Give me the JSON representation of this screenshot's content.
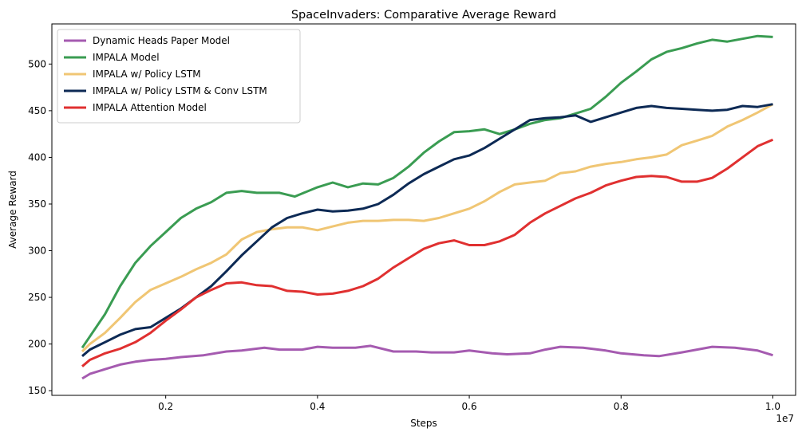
{
  "chart_data": {
    "type": "line",
    "title": "SpaceInvaders: Comparative Average Reward",
    "xlabel": "Steps",
    "ylabel": "Average Reward",
    "x_offset_label": "1e7",
    "xlim": [
      0.05,
      1.03
    ],
    "ylim": [
      145,
      543
    ],
    "x_ticks": [
      0.2,
      0.4,
      0.6,
      0.8,
      1.0
    ],
    "x_tick_labels": [
      "0.2",
      "0.4",
      "0.6",
      "0.8",
      "1.0"
    ],
    "y_ticks": [
      150,
      200,
      250,
      300,
      350,
      400,
      450,
      500
    ],
    "y_tick_labels": [
      "150",
      "200",
      "250",
      "300",
      "350",
      "400",
      "450",
      "500"
    ],
    "grid": false,
    "legend_position": "top-left",
    "series": [
      {
        "name": "Dynamic Heads Paper Model",
        "color": "#a55bb0",
        "x": [
          0.09,
          0.1,
          0.12,
          0.14,
          0.16,
          0.18,
          0.2,
          0.22,
          0.25,
          0.28,
          0.3,
          0.33,
          0.35,
          0.38,
          0.4,
          0.42,
          0.45,
          0.47,
          0.5,
          0.53,
          0.55,
          0.58,
          0.6,
          0.63,
          0.65,
          0.68,
          0.7,
          0.72,
          0.75,
          0.78,
          0.8,
          0.83,
          0.85,
          0.88,
          0.9,
          0.92,
          0.95,
          0.98,
          1.0
        ],
        "y": [
          163,
          168,
          173,
          178,
          181,
          183,
          184,
          186,
          188,
          192,
          193,
          196,
          194,
          194,
          197,
          196,
          196,
          198,
          192,
          192,
          191,
          191,
          193,
          190,
          189,
          190,
          194,
          197,
          196,
          193,
          190,
          188,
          187,
          191,
          194,
          197,
          196,
          193,
          188
        ]
      },
      {
        "name": "IMPALA Model",
        "color": "#3a9c52",
        "x": [
          0.09,
          0.1,
          0.12,
          0.14,
          0.16,
          0.18,
          0.2,
          0.22,
          0.24,
          0.26,
          0.28,
          0.3,
          0.32,
          0.35,
          0.37,
          0.4,
          0.42,
          0.44,
          0.46,
          0.48,
          0.5,
          0.52,
          0.54,
          0.56,
          0.58,
          0.6,
          0.62,
          0.64,
          0.66,
          0.68,
          0.7,
          0.72,
          0.74,
          0.76,
          0.78,
          0.8,
          0.82,
          0.84,
          0.86,
          0.88,
          0.9,
          0.92,
          0.94,
          0.96,
          0.98,
          1.0
        ],
        "y": [
          196,
          208,
          232,
          262,
          287,
          305,
          320,
          335,
          345,
          352,
          362,
          364,
          362,
          362,
          358,
          368,
          373,
          368,
          372,
          371,
          378,
          390,
          405,
          417,
          427,
          428,
          430,
          425,
          430,
          436,
          440,
          442,
          447,
          452,
          465,
          480,
          492,
          505,
          513,
          517,
          522,
          526,
          524,
          527,
          530,
          529
        ]
      },
      {
        "name": "IMPALA w/ Policy LSTM",
        "color": "#f0c674",
        "x": [
          0.09,
          0.1,
          0.12,
          0.14,
          0.16,
          0.18,
          0.2,
          0.22,
          0.24,
          0.26,
          0.28,
          0.3,
          0.32,
          0.34,
          0.36,
          0.38,
          0.4,
          0.42,
          0.44,
          0.46,
          0.48,
          0.5,
          0.52,
          0.54,
          0.56,
          0.58,
          0.6,
          0.62,
          0.64,
          0.66,
          0.68,
          0.7,
          0.72,
          0.74,
          0.76,
          0.78,
          0.8,
          0.82,
          0.84,
          0.86,
          0.88,
          0.9,
          0.92,
          0.94,
          0.96,
          0.98,
          1.0
        ],
        "y": [
          192,
          200,
          212,
          228,
          245,
          258,
          265,
          272,
          280,
          287,
          296,
          312,
          320,
          323,
          325,
          325,
          322,
          326,
          330,
          332,
          332,
          333,
          333,
          332,
          335,
          340,
          345,
          353,
          363,
          371,
          373,
          375,
          383,
          385,
          390,
          393,
          395,
          398,
          400,
          403,
          413,
          418,
          423,
          433,
          440,
          448,
          457
        ]
      },
      {
        "name": "IMPALA w/ Policy LSTM & Conv LSTM",
        "color": "#0d2a55",
        "x": [
          0.09,
          0.1,
          0.12,
          0.14,
          0.16,
          0.18,
          0.2,
          0.22,
          0.24,
          0.26,
          0.28,
          0.3,
          0.32,
          0.34,
          0.36,
          0.38,
          0.4,
          0.42,
          0.44,
          0.46,
          0.48,
          0.5,
          0.52,
          0.54,
          0.56,
          0.58,
          0.6,
          0.62,
          0.64,
          0.66,
          0.68,
          0.7,
          0.72,
          0.74,
          0.76,
          0.78,
          0.8,
          0.82,
          0.84,
          0.86,
          0.88,
          0.9,
          0.92,
          0.94,
          0.96,
          0.98,
          1.0
        ],
        "y": [
          187,
          194,
          202,
          210,
          216,
          218,
          228,
          238,
          250,
          262,
          278,
          295,
          310,
          325,
          335,
          340,
          344,
          342,
          343,
          345,
          350,
          360,
          372,
          382,
          390,
          398,
          402,
          410,
          420,
          430,
          440,
          442,
          443,
          445,
          438,
          443,
          448,
          453,
          455,
          453,
          452,
          451,
          450,
          451,
          455,
          454,
          457
        ]
      },
      {
        "name": "IMPALA Attention Model",
        "color": "#e03030",
        "x": [
          0.09,
          0.1,
          0.12,
          0.14,
          0.16,
          0.18,
          0.2,
          0.22,
          0.24,
          0.26,
          0.28,
          0.3,
          0.32,
          0.34,
          0.36,
          0.38,
          0.4,
          0.42,
          0.44,
          0.46,
          0.48,
          0.5,
          0.52,
          0.54,
          0.56,
          0.58,
          0.6,
          0.62,
          0.64,
          0.66,
          0.68,
          0.7,
          0.72,
          0.74,
          0.76,
          0.78,
          0.8,
          0.82,
          0.84,
          0.86,
          0.88,
          0.9,
          0.92,
          0.94,
          0.96,
          0.98,
          1.0
        ],
        "y": [
          176,
          183,
          190,
          195,
          202,
          212,
          225,
          237,
          250,
          258,
          265,
          266,
          263,
          262,
          257,
          256,
          253,
          254,
          257,
          262,
          270,
          282,
          292,
          302,
          308,
          311,
          306,
          306,
          310,
          317,
          330,
          340,
          348,
          356,
          362,
          370,
          375,
          379,
          380,
          379,
          374,
          374,
          378,
          388,
          400,
          412,
          419
        ]
      }
    ]
  }
}
